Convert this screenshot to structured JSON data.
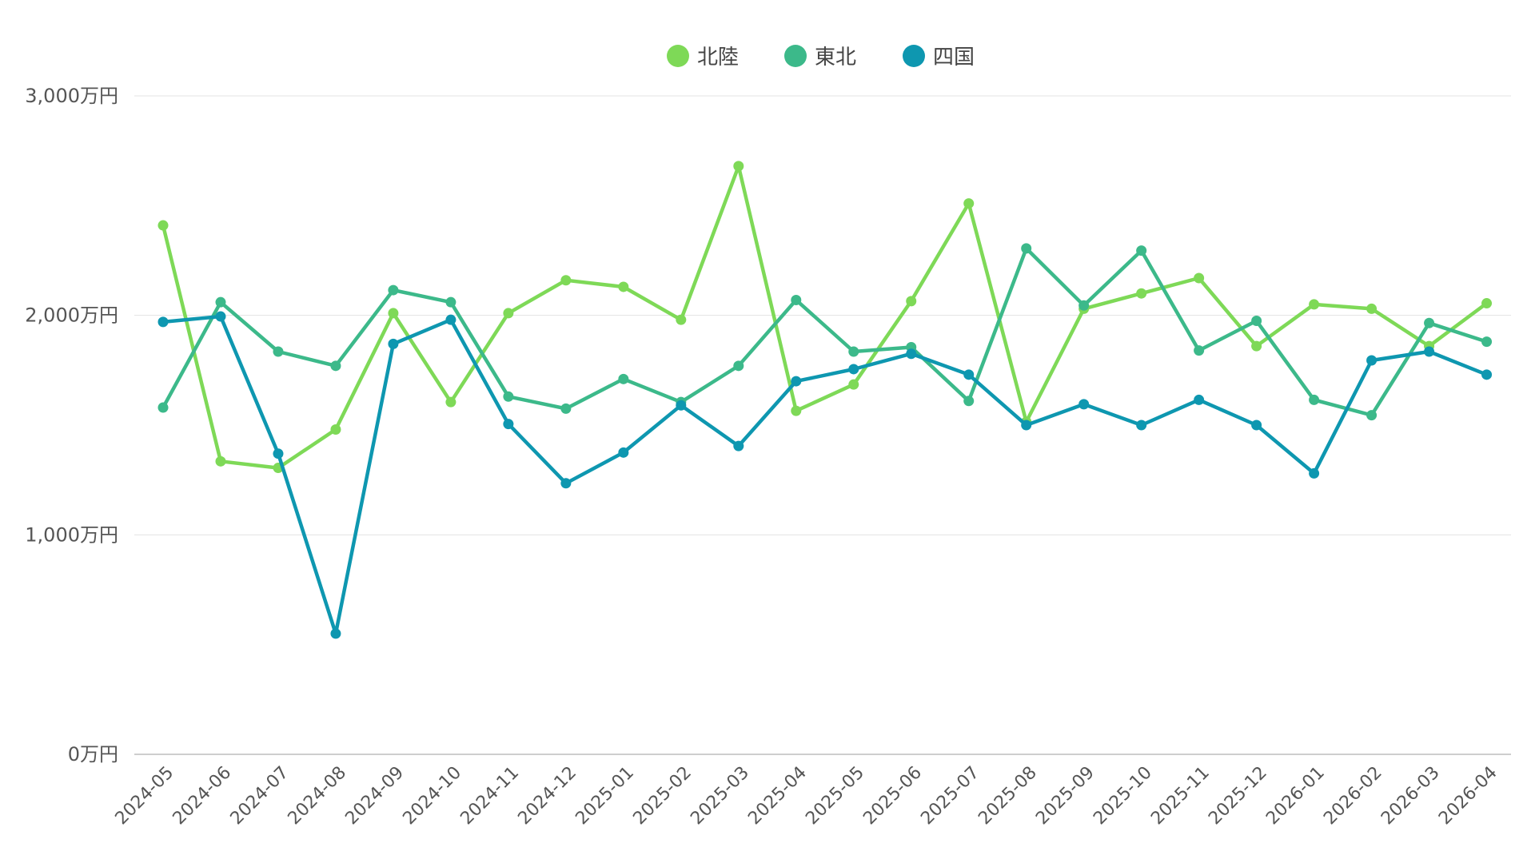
{
  "chart_data": {
    "type": "line",
    "title": "",
    "xlabel": "",
    "ylabel": "",
    "unit_suffix": "万円",
    "ylim": [
      0,
      3000
    ],
    "yticks": [
      0,
      1000,
      2000,
      3000
    ],
    "ytick_labels": [
      "0万円",
      "1,000万円",
      "2,000万円",
      "3,000万円"
    ],
    "grid": true,
    "legend_position": "top-center",
    "categories": [
      "2024-05",
      "2024-06",
      "2024-07",
      "2024-08",
      "2024-09",
      "2024-10",
      "2024-11",
      "2024-12",
      "2025-01",
      "2025-02",
      "2025-03",
      "2025-04",
      "2025-05",
      "2025-06",
      "2025-07",
      "2025-08",
      "2025-09",
      "2025-10",
      "2025-11",
      "2025-12",
      "2026-01",
      "2026-02",
      "2026-03",
      "2026-04"
    ],
    "series": [
      {
        "name": "北陸",
        "color": "#7ed957",
        "values": [
          2410,
          1335,
          1305,
          1480,
          2010,
          1605,
          2010,
          2160,
          2130,
          1980,
          2680,
          1565,
          1685,
          2065,
          2510,
          1515,
          2030,
          2100,
          2170,
          1860,
          2050,
          2030,
          1860,
          2055
        ]
      },
      {
        "name": "東北",
        "color": "#3cb98a",
        "values": [
          1580,
          2060,
          1835,
          1770,
          2115,
          2060,
          1630,
          1575,
          1710,
          1605,
          1770,
          2070,
          1835,
          1855,
          1610,
          2305,
          2045,
          2295,
          1840,
          1975,
          1615,
          1545,
          1965,
          1880
        ]
      },
      {
        "name": "四国",
        "color": "#0e97b0",
        "values": [
          1970,
          1995,
          1370,
          550,
          1870,
          1980,
          1505,
          1235,
          1375,
          1590,
          1405,
          1700,
          1755,
          1825,
          1730,
          1500,
          1595,
          1500,
          1615,
          1500,
          1280,
          1795,
          1835,
          1730
        ]
      }
    ]
  }
}
